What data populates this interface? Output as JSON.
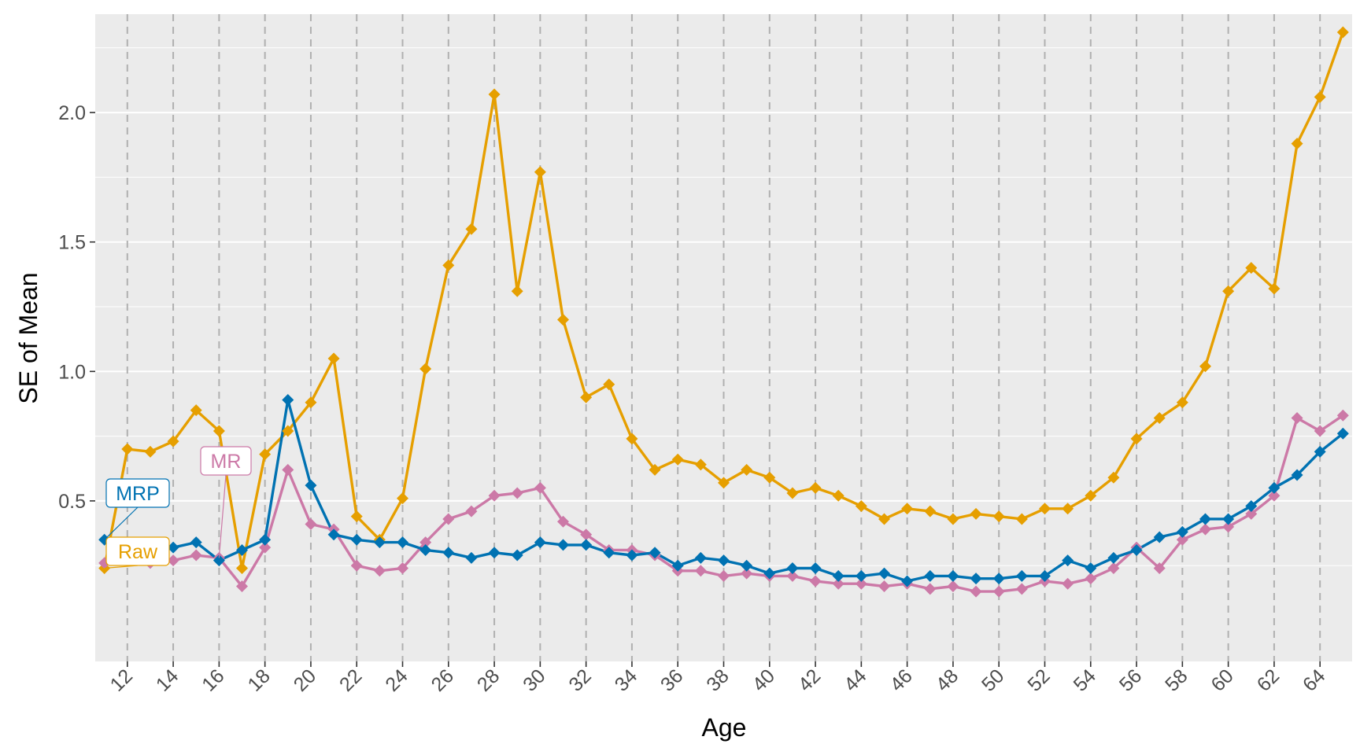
{
  "chart_data": {
    "type": "line",
    "title": "",
    "xlabel": "Age",
    "ylabel": "SE of Mean",
    "xlim": [
      10.6,
      65.4
    ],
    "ylim": [
      -0.12,
      2.38
    ],
    "x_ticks": [
      12,
      14,
      16,
      18,
      20,
      22,
      24,
      26,
      28,
      30,
      32,
      34,
      36,
      38,
      40,
      42,
      44,
      46,
      48,
      50,
      52,
      54,
      56,
      58,
      60,
      62,
      64
    ],
    "y_ticks": [
      0.5,
      1.0,
      1.5,
      2.0
    ],
    "y_tick_labels": [
      "0.5",
      "1.0",
      "1.5",
      "2.0"
    ],
    "grid": true,
    "x": [
      11,
      12,
      13,
      14,
      15,
      16,
      17,
      18,
      19,
      20,
      21,
      22,
      23,
      24,
      25,
      26,
      27,
      28,
      29,
      30,
      31,
      32,
      33,
      34,
      35,
      36,
      37,
      38,
      39,
      40,
      41,
      42,
      43,
      44,
      45,
      46,
      47,
      48,
      49,
      50,
      51,
      52,
      53,
      54,
      55,
      56,
      57,
      58,
      59,
      60,
      61,
      62,
      63,
      64,
      65
    ],
    "series": [
      {
        "name": "Raw",
        "color": "#E69F00",
        "values": [
          0.24,
          0.7,
          0.69,
          0.73,
          0.85,
          0.77,
          0.24,
          0.68,
          0.77,
          0.88,
          1.05,
          0.44,
          0.35,
          0.51,
          1.01,
          1.41,
          1.55,
          2.07,
          1.31,
          1.77,
          1.2,
          0.9,
          0.95,
          0.74,
          0.62,
          0.66,
          0.64,
          0.57,
          0.62,
          0.59,
          0.53,
          0.55,
          0.52,
          0.48,
          0.43,
          0.47,
          0.46,
          0.43,
          0.45,
          0.44,
          0.43,
          0.47,
          0.47,
          0.52,
          0.59,
          0.74,
          0.82,
          0.88,
          1.02,
          1.31,
          1.4,
          1.32,
          1.88,
          2.06,
          2.31
        ]
      },
      {
        "name": "MRP",
        "color": "#0072B2",
        "values": [
          0.35,
          0.32,
          0.29,
          0.32,
          0.34,
          0.27,
          0.31,
          0.35,
          0.89,
          0.56,
          0.37,
          0.35,
          0.34,
          0.34,
          0.31,
          0.3,
          0.28,
          0.3,
          0.29,
          0.34,
          0.33,
          0.33,
          0.3,
          0.29,
          0.3,
          0.25,
          0.28,
          0.27,
          0.25,
          0.22,
          0.24,
          0.24,
          0.21,
          0.21,
          0.22,
          0.19,
          0.21,
          0.21,
          0.2,
          0.2,
          0.21,
          0.21,
          0.27,
          0.24,
          0.28,
          0.31,
          0.36,
          0.38,
          0.43,
          0.43,
          0.48,
          0.55,
          0.6,
          0.69,
          0.76
        ]
      },
      {
        "name": "MR",
        "color": "#CC79A7",
        "values": [
          0.26,
          0.31,
          0.26,
          0.27,
          0.29,
          0.28,
          0.17,
          0.32,
          0.62,
          0.41,
          0.39,
          0.25,
          0.23,
          0.24,
          0.34,
          0.43,
          0.46,
          0.52,
          0.53,
          0.55,
          0.42,
          0.37,
          0.31,
          0.31,
          0.29,
          0.23,
          0.23,
          0.21,
          0.22,
          0.21,
          0.21,
          0.19,
          0.18,
          0.18,
          0.17,
          0.18,
          0.16,
          0.17,
          0.15,
          0.15,
          0.16,
          0.19,
          0.18,
          0.2,
          0.24,
          0.32,
          0.24,
          0.35,
          0.39,
          0.4,
          0.45,
          0.52,
          0.82,
          0.77,
          0.83
        ]
      }
    ],
    "direct_labels": [
      {
        "text": "MRP",
        "series": "MRP"
      },
      {
        "text": "MR",
        "series": "MR"
      },
      {
        "text": "Raw",
        "series": "Raw"
      }
    ]
  }
}
